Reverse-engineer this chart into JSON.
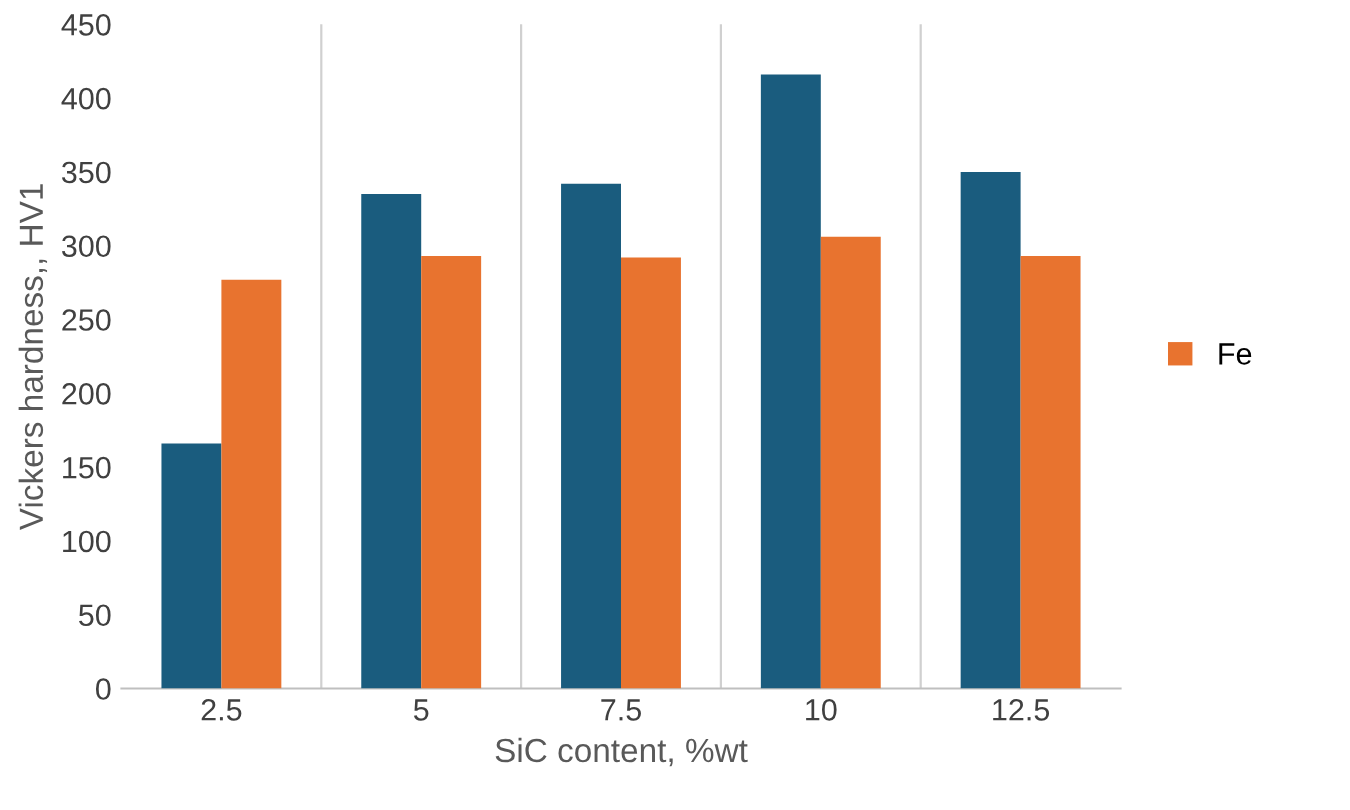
{
  "chart_data": {
    "type": "bar",
    "xlabel": "SiC content, %wt",
    "ylabel": "Vickers hardness,, HV1",
    "categories": [
      "2.5",
      "5",
      "7.5",
      "10",
      "12.5"
    ],
    "series": [
      {
        "color": "#1a5c7e",
        "values": [
          166,
          335,
          342,
          416,
          350
        ]
      },
      {
        "name": "Fe",
        "color": "#e8732f",
        "values": [
          277,
          293,
          292,
          306,
          293
        ]
      }
    ],
    "ylim": [
      0,
      450
    ],
    "yticks": [
      0,
      50,
      100,
      150,
      200,
      250,
      300,
      350,
      400,
      450
    ],
    "grid": "x",
    "legend": "right"
  }
}
